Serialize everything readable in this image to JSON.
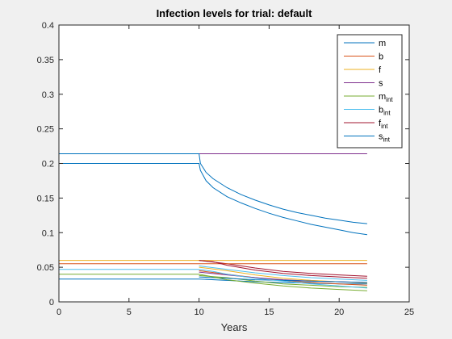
{
  "chart_data": {
    "type": "line",
    "title": "Infection levels for trial: default",
    "xlabel": "Years",
    "ylabel": "",
    "xlim": [
      0,
      25
    ],
    "ylim": [
      0,
      0.4
    ],
    "xticks": [
      0,
      5,
      10,
      15,
      20,
      25
    ],
    "yticks": [
      0,
      0.05,
      0.1,
      0.15,
      0.2,
      0.25,
      0.3,
      0.35,
      0.4
    ],
    "xtick_labels": [
      "0",
      "5",
      "10",
      "15",
      "20",
      "25"
    ],
    "ytick_labels": [
      "0",
      "0.05",
      "0.1",
      "0.15",
      "0.2",
      "0.25",
      "0.3",
      "0.35",
      "0.4"
    ],
    "grid": false,
    "legend_position": "top-right",
    "series": [
      {
        "name": "m",
        "sub": "",
        "color": "#0072bd",
        "points": [
          [
            0,
            0.2
          ],
          [
            10,
            0.2
          ],
          [
            10.1,
            0.19
          ],
          [
            10.5,
            0.175
          ],
          [
            11,
            0.165
          ],
          [
            12,
            0.152
          ],
          [
            13,
            0.143
          ],
          [
            14,
            0.135
          ],
          [
            15,
            0.128
          ],
          [
            16,
            0.122
          ],
          [
            17,
            0.117
          ],
          [
            18,
            0.112
          ],
          [
            19,
            0.108
          ],
          [
            20,
            0.104
          ],
          [
            21,
            0.1
          ],
          [
            22,
            0.097
          ]
        ]
      },
      {
        "name": "b",
        "sub": "",
        "color": "#d95319",
        "points": [
          [
            0,
            0.055
          ],
          [
            22,
            0.055
          ]
        ]
      },
      {
        "name": "f",
        "sub": "",
        "color": "#edb120",
        "points": [
          [
            0,
            0.06
          ],
          [
            22,
            0.06
          ]
        ]
      },
      {
        "name": "s",
        "sub": "",
        "color": "#7e2f8e",
        "points": [
          [
            0,
            0.214
          ],
          [
            22,
            0.214
          ]
        ]
      },
      {
        "name": "m",
        "sub": "int",
        "color": "#77ac30",
        "points": [
          [
            0,
            0.04
          ],
          [
            10,
            0.04
          ],
          [
            11,
            0.036
          ],
          [
            12,
            0.032
          ],
          [
            14,
            0.027
          ],
          [
            16,
            0.023
          ],
          [
            18,
            0.02
          ],
          [
            20,
            0.018
          ],
          [
            22,
            0.016
          ]
        ]
      },
      {
        "name": "b",
        "sub": "int",
        "color": "#4dbeee",
        "points": [
          [
            0,
            0.047
          ],
          [
            10,
            0.047
          ],
          [
            11,
            0.044
          ],
          [
            12,
            0.04
          ],
          [
            14,
            0.034
          ],
          [
            16,
            0.03
          ],
          [
            18,
            0.026
          ],
          [
            20,
            0.023
          ],
          [
            22,
            0.02
          ]
        ]
      },
      {
        "name": "f",
        "sub": "int",
        "color": "#a2142f",
        "points": [
          [
            10,
            0.06
          ],
          [
            11,
            0.058
          ],
          [
            12,
            0.053
          ],
          [
            14,
            0.046
          ],
          [
            16,
            0.041
          ],
          [
            18,
            0.038
          ],
          [
            20,
            0.036
          ],
          [
            22,
            0.034
          ]
        ]
      },
      {
        "name": "s",
        "sub": "int",
        "color": "#0072bd",
        "points": [
          [
            0,
            0.214
          ],
          [
            10,
            0.214
          ],
          [
            10.1,
            0.2
          ],
          [
            10.5,
            0.187
          ],
          [
            11,
            0.178
          ],
          [
            12,
            0.165
          ],
          [
            13,
            0.155
          ],
          [
            14,
            0.147
          ],
          [
            15,
            0.14
          ],
          [
            16,
            0.134
          ],
          [
            17,
            0.129
          ],
          [
            18,
            0.125
          ],
          [
            19,
            0.121
          ],
          [
            20,
            0.118
          ],
          [
            21,
            0.115
          ],
          [
            22,
            0.113
          ]
        ]
      }
    ],
    "extra_lines": [
      {
        "color": "#0072bd",
        "points": [
          [
            0,
            0.033
          ],
          [
            10,
            0.033
          ],
          [
            12,
            0.031
          ],
          [
            14,
            0.029
          ],
          [
            16,
            0.028
          ],
          [
            18,
            0.027
          ],
          [
            20,
            0.026
          ],
          [
            22,
            0.026
          ]
        ]
      },
      {
        "color": "#d95319",
        "points": [
          [
            10,
            0.045
          ],
          [
            12,
            0.04
          ],
          [
            14,
            0.035
          ],
          [
            16,
            0.031
          ],
          [
            18,
            0.028
          ],
          [
            20,
            0.026
          ],
          [
            22,
            0.024
          ]
        ]
      },
      {
        "color": "#edb120",
        "points": [
          [
            10,
            0.05
          ],
          [
            12,
            0.045
          ],
          [
            14,
            0.039
          ],
          [
            16,
            0.034
          ],
          [
            18,
            0.031
          ],
          [
            20,
            0.029
          ],
          [
            22,
            0.027
          ]
        ]
      },
      {
        "color": "#7e2f8e",
        "points": [
          [
            10,
            0.043
          ],
          [
            12,
            0.039
          ],
          [
            14,
            0.035
          ],
          [
            16,
            0.032
          ],
          [
            18,
            0.03
          ],
          [
            20,
            0.029
          ],
          [
            22,
            0.028
          ]
        ]
      },
      {
        "color": "#77ac30",
        "points": [
          [
            10,
            0.038
          ],
          [
            12,
            0.035
          ],
          [
            14,
            0.03
          ],
          [
            16,
            0.026
          ],
          [
            18,
            0.024
          ],
          [
            20,
            0.022
          ],
          [
            22,
            0.021
          ]
        ]
      },
      {
        "color": "#4dbeee",
        "points": [
          [
            10,
            0.052
          ],
          [
            12,
            0.047
          ],
          [
            14,
            0.042
          ],
          [
            16,
            0.038
          ],
          [
            18,
            0.035
          ],
          [
            20,
            0.033
          ],
          [
            22,
            0.031
          ]
        ]
      },
      {
        "color": "#a2142f",
        "points": [
          [
            10,
            0.06
          ],
          [
            12,
            0.055
          ],
          [
            14,
            0.049
          ],
          [
            16,
            0.044
          ],
          [
            18,
            0.041
          ],
          [
            20,
            0.039
          ],
          [
            22,
            0.037
          ]
        ]
      },
      {
        "color": "#0072bd",
        "points": [
          [
            10,
            0.036
          ],
          [
            12,
            0.034
          ],
          [
            14,
            0.032
          ],
          [
            16,
            0.031
          ],
          [
            18,
            0.03
          ],
          [
            20,
            0.029
          ],
          [
            22,
            0.028
          ]
        ]
      }
    ]
  }
}
